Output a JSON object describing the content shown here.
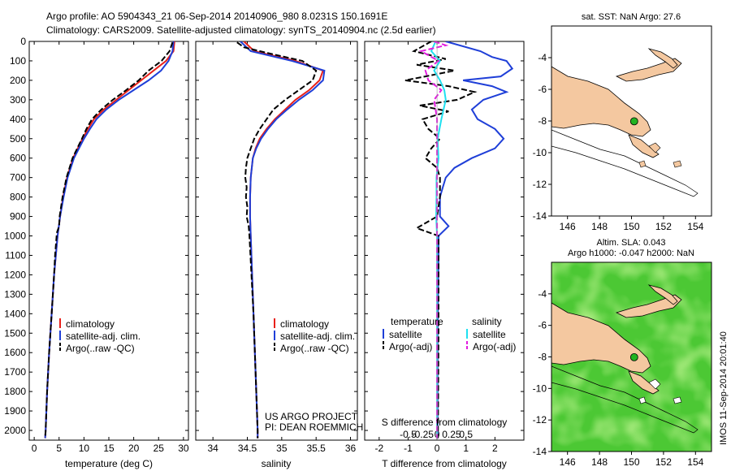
{
  "header": {
    "line1": "Argo profile: AO 5904343_21 06-Sep-2014 20140906_980 8.0231S 150.1691E",
    "line2": "Climatology: CARS2009. Satellite-adjusted climatology: synTS_20140904.nc (2.5d earlier)"
  },
  "colors": {
    "clim": "#e8201a",
    "sat": "#1f3fd8",
    "argo": "#000000",
    "cyan": "#1fe0f0",
    "magenta": "#e21ce0",
    "land": "#f4c8a0",
    "sla": "#4cc834",
    "float": "#22b322"
  },
  "chart_data": [
    {
      "type": "line",
      "id": "temperature",
      "xlabel": "temperature (deg C)",
      "xlim": [
        -1,
        31
      ],
      "ylim": [
        2050,
        0
      ],
      "xticks": [
        0,
        5,
        10,
        15,
        20,
        25,
        30
      ],
      "xtick_labels": [
        "0",
        "5",
        "10",
        "15",
        "20",
        "25",
        "30"
      ],
      "yticks": [
        0,
        100,
        200,
        300,
        400,
        500,
        600,
        700,
        800,
        900,
        1000,
        1100,
        1200,
        1300,
        1400,
        1500,
        1600,
        1700,
        1800,
        1900,
        2000
      ],
      "ytick_labels": [
        "0",
        "100",
        "200",
        "300",
        "400",
        "500",
        "600",
        "700",
        "800",
        "900",
        "1000",
        "1100",
        "1200",
        "1300",
        "1400",
        "1500",
        "1600",
        "1700",
        "1800",
        "1900",
        "2000"
      ],
      "legend": [
        "climatology",
        "satellite-adj. clim.",
        "Argo(..raw -QC)"
      ],
      "series": [
        {
          "name": "climatology",
          "color": "#e8201a",
          "dash": false,
          "depth": [
            0,
            50,
            100,
            150,
            200,
            250,
            300,
            350,
            400,
            450,
            500,
            600,
            700,
            800,
            900,
            1000,
            1200,
            1400,
            1600,
            1800,
            2000,
            2040
          ],
          "values": [
            28.2,
            28,
            26.5,
            24,
            21.5,
            19,
            16.5,
            14,
            12,
            10.8,
            9.7,
            7.8,
            6.6,
            5.8,
            5.2,
            4.7,
            4,
            3.5,
            3,
            2.6,
            2.3,
            2.2
          ]
        },
        {
          "name": "satellite-adj. clim.",
          "color": "#1f3fd8",
          "dash": false,
          "depth": [
            0,
            50,
            100,
            150,
            200,
            250,
            300,
            350,
            400,
            450,
            500,
            600,
            700,
            800,
            900,
            1000,
            1200,
            1400,
            1600,
            1800,
            2000,
            2040
          ],
          "values": [
            28,
            27.8,
            27,
            25.5,
            23,
            20,
            17,
            14.5,
            12.5,
            11.2,
            10,
            8,
            6.7,
            5.9,
            5.2,
            4.7,
            4,
            3.5,
            3,
            2.6,
            2.3,
            2.2
          ]
        },
        {
          "name": "Argo(..raw -QC)",
          "color": "#000000",
          "dash": true,
          "depth": [
            5,
            50,
            100,
            150,
            200,
            250,
            300,
            350,
            400,
            450,
            500,
            600,
            700,
            800,
            900,
            950,
            980,
            1000,
            1100,
            1200,
            1400,
            1600,
            1800,
            2000,
            2040
          ],
          "values": [
            27.8,
            27.2,
            25.6,
            23,
            21,
            18.5,
            15.8,
            13.5,
            11.6,
            10.5,
            9.6,
            7.7,
            6.5,
            5.7,
            5.1,
            5,
            4.6,
            4.5,
            4.2,
            4,
            3.5,
            3,
            2.6,
            2.3,
            2.2
          ]
        }
      ]
    },
    {
      "type": "line",
      "id": "salinity",
      "xlabel": "salinity",
      "xlim": [
        33.75,
        36.1
      ],
      "ylim": [
        2050,
        0
      ],
      "xticks": [
        34,
        34.5,
        35,
        35.5,
        36
      ],
      "xtick_labels": [
        "34",
        "34.5",
        "35",
        "35.5",
        "36"
      ],
      "legend": [
        "climatology",
        "satellite-adj. clim.",
        "Argo(..raw -QC)"
      ],
      "annotation": [
        "US ARGO PROJECT",
        "PI: DEAN ROEMMICH"
      ],
      "series": [
        {
          "name": "climatology",
          "color": "#e8201a",
          "dash": false,
          "depth": [
            0,
            50,
            100,
            150,
            200,
            250,
            300,
            350,
            400,
            450,
            500,
            550,
            600,
            700,
            800,
            900,
            1000,
            1200,
            1400,
            1600,
            1800,
            2000,
            2040
          ],
          "values": [
            34.45,
            34.6,
            35.2,
            35.6,
            35.55,
            35.4,
            35.2,
            35.05,
            34.9,
            34.78,
            34.68,
            34.62,
            34.58,
            34.55,
            34.54,
            34.54,
            34.55,
            34.57,
            34.59,
            34.61,
            34.63,
            34.65,
            34.65
          ]
        },
        {
          "name": "satellite-adj. clim.",
          "color": "#1f3fd8",
          "dash": false,
          "depth": [
            0,
            50,
            100,
            150,
            200,
            250,
            300,
            350,
            400,
            450,
            500,
            550,
            600,
            700,
            800,
            900,
            1000,
            1200,
            1400,
            1600,
            1800,
            2000,
            2040
          ],
          "values": [
            34.4,
            34.55,
            35.15,
            35.62,
            35.6,
            35.45,
            35.25,
            35.08,
            34.92,
            34.8,
            34.7,
            34.63,
            34.58,
            34.55,
            34.54,
            34.54,
            34.55,
            34.57,
            34.59,
            34.61,
            34.63,
            34.65,
            34.65
          ]
        },
        {
          "name": "Argo(..raw -QC)",
          "color": "#000000",
          "dash": true,
          "depth": [
            5,
            30,
            60,
            100,
            150,
            200,
            250,
            300,
            350,
            400,
            450,
            500,
            550,
            600,
            650,
            700,
            750,
            800,
            850,
            900,
            950,
            1000,
            1200,
            1400,
            1600,
            1800,
            2000,
            2040
          ],
          "values": [
            34.35,
            34.45,
            34.8,
            35.3,
            35.5,
            35.45,
            35.25,
            35.05,
            34.88,
            34.78,
            34.68,
            34.6,
            34.55,
            34.5,
            34.48,
            34.47,
            34.49,
            34.48,
            34.5,
            34.49,
            34.52,
            34.53,
            34.56,
            34.59,
            34.61,
            34.63,
            34.65,
            34.65
          ]
        }
      ]
    },
    {
      "type": "line",
      "id": "differences",
      "xlabel": "T difference from climatology",
      "xlabel_top": "S difference from climatology",
      "xlim": [
        -2.5,
        3
      ],
      "ylim": [
        2050,
        0
      ],
      "xticks": [
        -2,
        -1,
        0,
        1,
        2
      ],
      "xtick_labels": [
        "-2",
        "-1",
        "0",
        "1",
        "2"
      ],
      "top_ticks": [
        -0.5,
        -0.25,
        0,
        0.25,
        0.5
      ],
      "top_tick_labels": [
        "-0.5",
        "-0.25",
        "0",
        "0.25",
        "0.5"
      ],
      "legend_groups": [
        {
          "title": "temperature",
          "items": [
            "satellite",
            "Argo(-adj)"
          ]
        },
        {
          "title": "salinity",
          "items": [
            "satellite",
            "Argo(-adj)"
          ]
        }
      ],
      "series": [
        {
          "name": "temperature satellite",
          "color": "#1f3fd8",
          "dash": false,
          "depth": [
            0,
            50,
            80,
            100,
            140,
            180,
            200,
            230,
            260,
            300,
            350,
            400,
            450,
            500,
            550,
            600,
            650,
            700,
            750,
            800,
            900,
            950,
            1000,
            1100,
            1500,
            2040
          ],
          "values": [
            0.3,
            1.5,
            1.9,
            2.4,
            2.6,
            2.2,
            0.9,
            1.9,
            2.4,
            1.6,
            1.2,
            1.4,
            2,
            2.3,
            2,
            1.2,
            0.6,
            0.3,
            0.2,
            0.1,
            0.1,
            0.4,
            0.05,
            0.05,
            0.02,
            0.02
          ]
        },
        {
          "name": "temperature Argo(-adj)",
          "color": "#000000",
          "dash": true,
          "depth": [
            0,
            50,
            90,
            120,
            150,
            180,
            200,
            230,
            260,
            300,
            330,
            360,
            400,
            450,
            500,
            550,
            600,
            650,
            700,
            800,
            900,
            960,
            1000,
            1100,
            1500,
            2040
          ],
          "values": [
            -0.2,
            -0.8,
            0.3,
            -0.7,
            0.6,
            -0.4,
            -1.1,
            0.4,
            1.3,
            0.7,
            -0.6,
            0.4,
            -0.5,
            -0.3,
            0.1,
            -0.2,
            -0.4,
            0,
            0.1,
            0.1,
            0,
            -0.7,
            0.05,
            0.05,
            0.05,
            0.03
          ]
        },
        {
          "name": "salinity satellite",
          "color": "#1fe0f0",
          "dash": false,
          "depth": [
            0,
            50,
            100,
            150,
            200,
            250,
            300,
            400,
            500,
            600,
            700,
            800,
            900,
            1000,
            1100,
            1500,
            2040
          ],
          "values": [
            -0.05,
            -0.2,
            0.1,
            -0.1,
            0.1,
            0.25,
            0.3,
            0.15,
            0.02,
            0.05,
            -0.02,
            -0.02,
            -0.03,
            0,
            0,
            0,
            0
          ]
        },
        {
          "name": "salinity Argo(-adj)",
          "color": "#e21ce0",
          "dash": true,
          "depth": [
            0,
            20,
            50,
            100,
            150,
            200,
            250,
            300,
            400,
            500,
            600,
            700,
            800,
            900,
            1000,
            2040
          ],
          "values": [
            -0.1,
            0.3,
            -0.55,
            0.05,
            -0.4,
            -0.3,
            0.15,
            -0.1,
            0,
            0,
            0,
            0,
            0,
            0,
            0,
            0
          ]
        }
      ]
    },
    {
      "type": "map",
      "id": "sst_map",
      "title": "sat. SST: NaN Argo: 27.6",
      "xlim": [
        145,
        155
      ],
      "ylim": [
        -14,
        -2
      ],
      "xticks": [
        146,
        148,
        150,
        152,
        154
      ],
      "xtick_labels": [
        "146",
        "148",
        "150",
        "152",
        "154"
      ],
      "yticks": [
        -4,
        -6,
        -8,
        -10,
        -12,
        -14
      ],
      "ytick_labels": [
        "-4",
        "-6",
        "-8",
        "-10",
        "-12",
        "-14"
      ],
      "float_position": [
        150.17,
        -8.02
      ]
    },
    {
      "type": "map",
      "id": "sla_map",
      "title": "Altim. SLA: 0.043",
      "subtitle": "Argo h1000: -0.047 h2000: NaN",
      "xlim": [
        145,
        155
      ],
      "ylim": [
        -14,
        -2
      ],
      "xticks": [
        146,
        148,
        150,
        152,
        154
      ],
      "xtick_labels": [
        "146",
        "148",
        "150",
        "152",
        "154"
      ],
      "yticks": [
        -4,
        -6,
        -8,
        -10,
        -12,
        -14
      ],
      "ytick_labels": [
        "-4",
        "-6",
        "-8",
        "-10",
        "-12",
        "-14"
      ],
      "float_position": [
        150.17,
        -8.02
      ]
    }
  ],
  "sidebar": {
    "stamp": "IMOS 11-Sep-2014 20:01:40"
  }
}
